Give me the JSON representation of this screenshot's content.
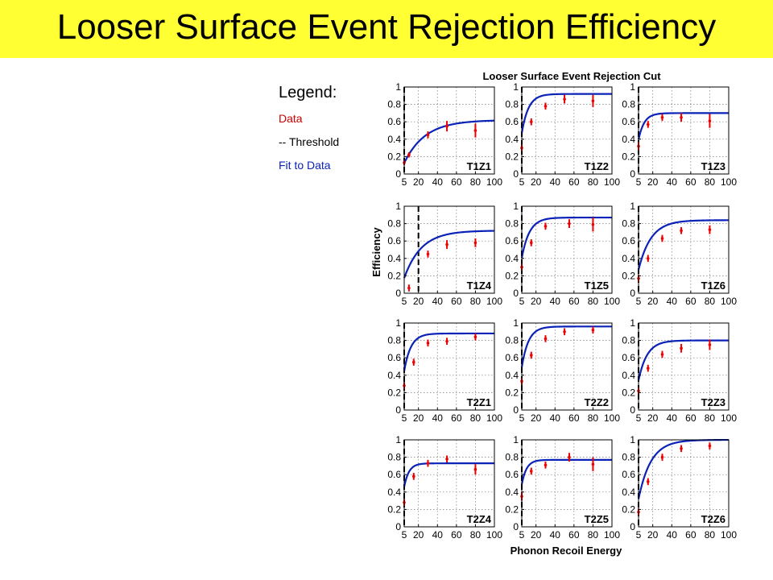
{
  "slide": {
    "title": "Looser Surface Event Rejection Efficiency"
  },
  "legend": {
    "heading": "Legend:",
    "items": [
      {
        "label": "Data",
        "color": "#cc0000"
      },
      {
        "label": "-- Threshold",
        "color": "#000000"
      },
      {
        "label": "Fit to Data",
        "color": "#0a22b8"
      }
    ]
  },
  "chart_data": {
    "type": "scatter",
    "title": "Looser Surface Event Rejection Cut",
    "xlabel": "Phonon Recoil Energy",
    "ylabel": "Efficiency",
    "xlim": [
      5,
      100
    ],
    "ylim": [
      0,
      1
    ],
    "xticks": [
      "5",
      "20",
      "40",
      "60",
      "80",
      "100"
    ],
    "yticks": [
      "0",
      "0.2",
      "0.4",
      "0.6",
      "0.8",
      "1"
    ],
    "grid": true,
    "colors": {
      "data": "#ee0000",
      "fit": "#0a22b8",
      "threshold": "#000000"
    },
    "panels": [
      {
        "label": "T1Z1",
        "threshold": 5,
        "fit_max": 0.62,
        "fit_k": 22,
        "points": [
          {
            "x": 5,
            "y": 0.13,
            "err": 0.03
          },
          {
            "x": 10,
            "y": 0.22,
            "err": 0.03
          },
          {
            "x": 30,
            "y": 0.45,
            "err": 0.04
          },
          {
            "x": 50,
            "y": 0.55,
            "err": 0.06
          },
          {
            "x": 80,
            "y": 0.5,
            "err": 0.08
          }
        ]
      },
      {
        "label": "T1Z2",
        "threshold": 5,
        "fit_max": 0.92,
        "fit_k": 7,
        "points": [
          {
            "x": 5,
            "y": 0.3,
            "err": 0.04
          },
          {
            "x": 15,
            "y": 0.6,
            "err": 0.04
          },
          {
            "x": 30,
            "y": 0.78,
            "err": 0.04
          },
          {
            "x": 50,
            "y": 0.86,
            "err": 0.05
          },
          {
            "x": 80,
            "y": 0.84,
            "err": 0.07
          }
        ]
      },
      {
        "label": "T1Z3",
        "threshold": 5,
        "fit_max": 0.7,
        "fit_k": 6,
        "points": [
          {
            "x": 5,
            "y": 0.32,
            "err": 0.05
          },
          {
            "x": 15,
            "y": 0.57,
            "err": 0.04
          },
          {
            "x": 30,
            "y": 0.65,
            "err": 0.04
          },
          {
            "x": 50,
            "y": 0.65,
            "err": 0.05
          },
          {
            "x": 80,
            "y": 0.61,
            "err": 0.08
          }
        ]
      },
      {
        "label": "T1Z4",
        "threshold": 20,
        "fit_max": 0.72,
        "fit_k": 18,
        "points": [
          {
            "x": 10,
            "y": 0.06,
            "err": 0.04
          },
          {
            "x": 30,
            "y": 0.45,
            "err": 0.04
          },
          {
            "x": 50,
            "y": 0.56,
            "err": 0.05
          },
          {
            "x": 80,
            "y": 0.58,
            "err": 0.05
          }
        ]
      },
      {
        "label": "T1Z5",
        "threshold": 5,
        "fit_max": 0.87,
        "fit_k": 8,
        "points": [
          {
            "x": 5,
            "y": 0.3,
            "err": 0.04
          },
          {
            "x": 15,
            "y": 0.58,
            "err": 0.04
          },
          {
            "x": 30,
            "y": 0.77,
            "err": 0.04
          },
          {
            "x": 55,
            "y": 0.8,
            "err": 0.05
          },
          {
            "x": 80,
            "y": 0.79,
            "err": 0.08
          }
        ]
      },
      {
        "label": "T1Z6",
        "threshold": 5,
        "fit_max": 0.84,
        "fit_k": 13,
        "points": [
          {
            "x": 5,
            "y": 0.17,
            "err": 0.04
          },
          {
            "x": 15,
            "y": 0.4,
            "err": 0.04
          },
          {
            "x": 30,
            "y": 0.63,
            "err": 0.04
          },
          {
            "x": 50,
            "y": 0.72,
            "err": 0.04
          },
          {
            "x": 80,
            "y": 0.73,
            "err": 0.05
          }
        ]
      },
      {
        "label": "T2Z1",
        "threshold": 5,
        "fit_max": 0.88,
        "fit_k": 7,
        "points": [
          {
            "x": 5,
            "y": 0.28,
            "err": 0.04
          },
          {
            "x": 15,
            "y": 0.55,
            "err": 0.04
          },
          {
            "x": 30,
            "y": 0.77,
            "err": 0.04
          },
          {
            "x": 50,
            "y": 0.79,
            "err": 0.04
          },
          {
            "x": 80,
            "y": 0.84,
            "err": 0.04
          }
        ]
      },
      {
        "label": "T2Z2",
        "threshold": 5,
        "fit_max": 0.96,
        "fit_k": 7,
        "points": [
          {
            "x": 5,
            "y": 0.33,
            "err": 0.04
          },
          {
            "x": 15,
            "y": 0.63,
            "err": 0.04
          },
          {
            "x": 30,
            "y": 0.82,
            "err": 0.04
          },
          {
            "x": 50,
            "y": 0.9,
            "err": 0.04
          },
          {
            "x": 80,
            "y": 0.92,
            "err": 0.04
          }
        ]
      },
      {
        "label": "T2Z3",
        "threshold": 5,
        "fit_max": 0.8,
        "fit_k": 9,
        "points": [
          {
            "x": 5,
            "y": 0.22,
            "err": 0.04
          },
          {
            "x": 15,
            "y": 0.48,
            "err": 0.04
          },
          {
            "x": 30,
            "y": 0.64,
            "err": 0.04
          },
          {
            "x": 50,
            "y": 0.71,
            "err": 0.05
          },
          {
            "x": 80,
            "y": 0.75,
            "err": 0.06
          }
        ]
      },
      {
        "label": "T2Z4",
        "threshold": 5,
        "fit_max": 0.73,
        "fit_k": 5,
        "points": [
          {
            "x": 5,
            "y": 0.28,
            "err": 0.04
          },
          {
            "x": 15,
            "y": 0.58,
            "err": 0.04
          },
          {
            "x": 30,
            "y": 0.73,
            "err": 0.04
          },
          {
            "x": 50,
            "y": 0.78,
            "err": 0.04
          },
          {
            "x": 80,
            "y": 0.66,
            "err": 0.06
          }
        ]
      },
      {
        "label": "T2Z5",
        "threshold": 5,
        "fit_max": 0.77,
        "fit_k": 5,
        "points": [
          {
            "x": 5,
            "y": 0.35,
            "err": 0.05
          },
          {
            "x": 15,
            "y": 0.64,
            "err": 0.04
          },
          {
            "x": 30,
            "y": 0.71,
            "err": 0.04
          },
          {
            "x": 55,
            "y": 0.8,
            "err": 0.05
          },
          {
            "x": 80,
            "y": 0.72,
            "err": 0.08
          }
        ]
      },
      {
        "label": "T2Z6",
        "threshold": 5,
        "fit_max": 1.0,
        "fit_k": 13,
        "points": [
          {
            "x": 5,
            "y": 0.17,
            "err": 0.04
          },
          {
            "x": 15,
            "y": 0.52,
            "err": 0.04
          },
          {
            "x": 30,
            "y": 0.8,
            "err": 0.04
          },
          {
            "x": 50,
            "y": 0.9,
            "err": 0.04
          },
          {
            "x": 80,
            "y": 0.93,
            "err": 0.04
          }
        ]
      }
    ]
  }
}
